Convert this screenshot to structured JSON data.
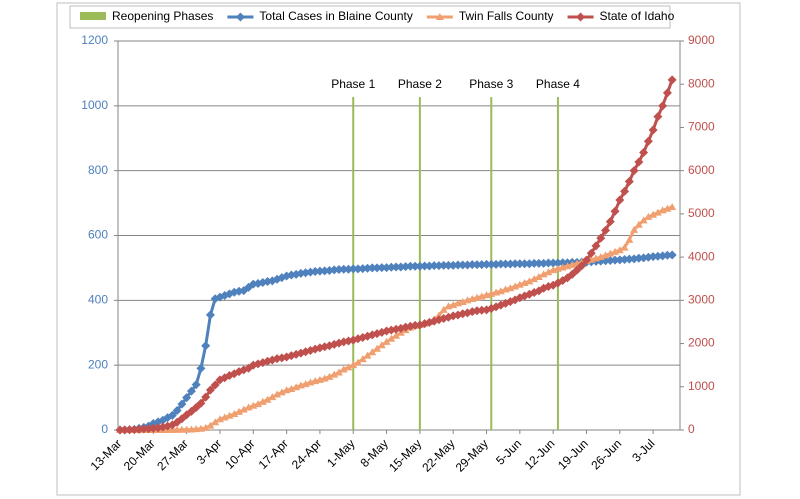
{
  "chart_data": {
    "type": "line",
    "categories": [
      "13-Mar",
      null,
      null,
      null,
      null,
      null,
      null,
      "20-Mar",
      null,
      null,
      null,
      null,
      null,
      null,
      "27-Mar",
      null,
      null,
      null,
      null,
      null,
      null,
      "3-Apr",
      null,
      null,
      null,
      null,
      null,
      null,
      "10-Apr",
      null,
      null,
      null,
      null,
      null,
      null,
      "17-Apr",
      null,
      null,
      null,
      null,
      null,
      null,
      "24-Apr",
      null,
      null,
      null,
      null,
      null,
      null,
      "1-May",
      null,
      null,
      null,
      null,
      null,
      null,
      "8-May",
      null,
      null,
      null,
      null,
      null,
      null,
      "15-May",
      null,
      null,
      null,
      null,
      null,
      null,
      "22-May",
      null,
      null,
      null,
      null,
      null,
      null,
      "29-May",
      null,
      null,
      null,
      null,
      null,
      null,
      "5-Jun",
      null,
      null,
      null,
      null,
      null,
      null,
      "12-Jun",
      null,
      null,
      null,
      null,
      null,
      null,
      "19-Jun",
      null,
      null,
      null,
      null,
      null,
      null,
      "26-Jun",
      null,
      null,
      null,
      null,
      null,
      null,
      "3-Jul",
      null,
      null,
      null,
      null
    ],
    "phases": {
      "name": "Reopening Phases",
      "color": "#9bbb59",
      "lines": [
        {
          "label": "Phase 1",
          "x": 49
        },
        {
          "label": "Phase 2",
          "x": 63
        },
        {
          "label": "Phase 3",
          "x": 78
        },
        {
          "label": "Phase 4",
          "x": 92
        }
      ]
    },
    "series": [
      {
        "name": "Total Cases in Blaine County",
        "color": "#4f81bd",
        "marker": "diamond",
        "axis": "y",
        "values": [
          0,
          0,
          1,
          2,
          5,
          8,
          12,
          20,
          25,
          30,
          38,
          45,
          60,
          80,
          100,
          120,
          140,
          190,
          260,
          355,
          405,
          410,
          415,
          420,
          425,
          428,
          430,
          440,
          450,
          452,
          455,
          458,
          460,
          465,
          470,
          475,
          478,
          480,
          483,
          485,
          487,
          489,
          490,
          491,
          492,
          494,
          495,
          496,
          496,
          497,
          497,
          498,
          499,
          500,
          500,
          501,
          501,
          502,
          503,
          503,
          504,
          505,
          505,
          505,
          506,
          506,
          507,
          507,
          508,
          508,
          508,
          509,
          509,
          509,
          510,
          510,
          510,
          511,
          511,
          511,
          512,
          512,
          512,
          513,
          513,
          513,
          513,
          514,
          514,
          514,
          515,
          515,
          515,
          516,
          516,
          517,
          517,
          518,
          518,
          519,
          520,
          521,
          522,
          523,
          524,
          525,
          526,
          527,
          528,
          530,
          531,
          533,
          535,
          536,
          537,
          539,
          540
        ]
      },
      {
        "name": "Twin Falls County",
        "color": "#f0a070",
        "marker": "triangle",
        "axis": "y2",
        "values": [
          0,
          0,
          0,
          0,
          0,
          0,
          0,
          0,
          0,
          1,
          1,
          2,
          3,
          5,
          8,
          12,
          20,
          30,
          50,
          100,
          180,
          250,
          290,
          330,
          370,
          420,
          470,
          520,
          560,
          600,
          650,
          700,
          760,
          820,
          870,
          920,
          950,
          990,
          1030,
          1060,
          1100,
          1130,
          1160,
          1190,
          1230,
          1280,
          1330,
          1400,
          1450,
          1500,
          1560,
          1640,
          1720,
          1800,
          1880,
          1960,
          2040,
          2110,
          2180,
          2250,
          2310,
          2370,
          2410,
          2430,
          2460,
          2500,
          2560,
          2650,
          2780,
          2860,
          2890,
          2930,
          2960,
          3000,
          3030,
          3060,
          3090,
          3120,
          3150,
          3180,
          3210,
          3250,
          3280,
          3320,
          3360,
          3400,
          3440,
          3490,
          3540,
          3600,
          3650,
          3700,
          3730,
          3760,
          3790,
          3820,
          3850,
          3880,
          3910,
          3940,
          3970,
          4000,
          4040,
          4080,
          4120,
          4160,
          4220,
          4400,
          4630,
          4750,
          4850,
          4930,
          4980,
          5030,
          5080,
          5120,
          5160
        ]
      },
      {
        "name": "State of Idaho",
        "color": "#c0504d",
        "marker": "diamond",
        "axis": "y2",
        "values": [
          0,
          2,
          5,
          10,
          15,
          25,
          30,
          40,
          50,
          70,
          90,
          120,
          180,
          260,
          350,
          430,
          520,
          620,
          760,
          925,
          1040,
          1160,
          1210,
          1260,
          1300,
          1350,
          1390,
          1430,
          1500,
          1530,
          1560,
          1590,
          1620,
          1650,
          1670,
          1690,
          1720,
          1750,
          1780,
          1810,
          1840,
          1870,
          1900,
          1925,
          1950,
          1980,
          2010,
          2040,
          2060,
          2080,
          2110,
          2140,
          2170,
          2200,
          2230,
          2260,
          2290,
          2310,
          2330,
          2350,
          2380,
          2400,
          2420,
          2430,
          2460,
          2490,
          2520,
          2550,
          2580,
          2610,
          2640,
          2660,
          2690,
          2710,
          2740,
          2760,
          2770,
          2780,
          2810,
          2850,
          2890,
          2930,
          2970,
          3010,
          3060,
          3100,
          3140,
          3180,
          3220,
          3280,
          3320,
          3350,
          3400,
          3460,
          3520,
          3600,
          3700,
          3800,
          3930,
          4090,
          4260,
          4440,
          4620,
          4820,
          5060,
          5320,
          5520,
          5750,
          6000,
          6200,
          6420,
          6680,
          6940,
          7250,
          7500,
          7800,
          8100
        ]
      }
    ],
    "ylim": [
      0,
      1200
    ],
    "yticks": [
      0,
      200,
      400,
      600,
      800,
      1000,
      1200
    ],
    "y2lim": [
      0,
      9000
    ],
    "y2ticks": [
      0,
      1000,
      2000,
      3000,
      4000,
      5000,
      6000,
      7000,
      8000,
      9000
    ],
    "grid": true,
    "legend": "top"
  }
}
